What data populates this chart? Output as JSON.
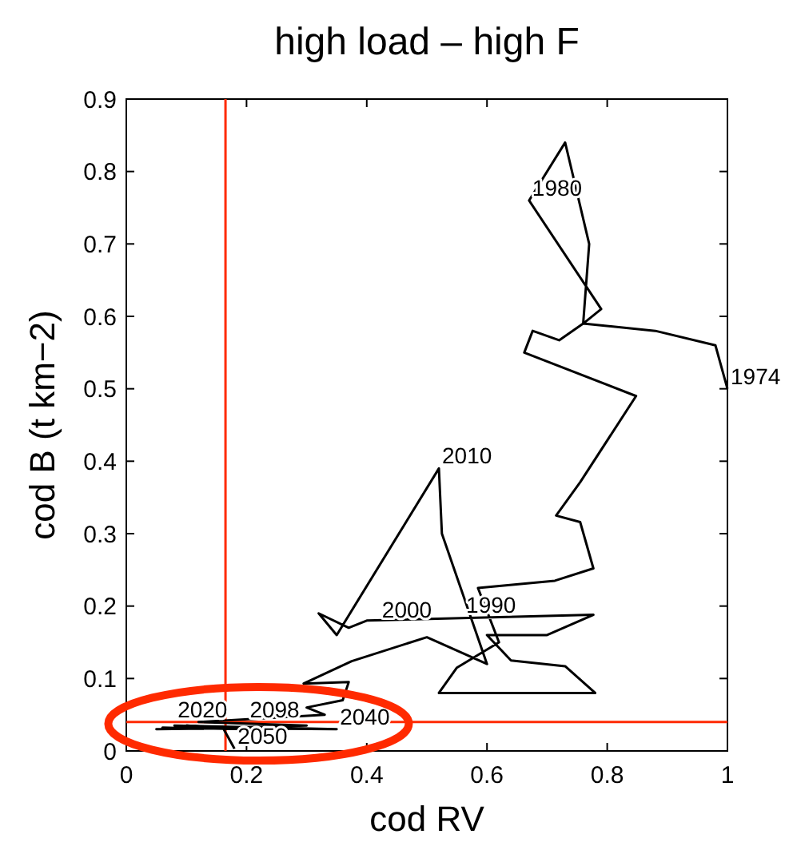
{
  "chart_data": {
    "type": "line",
    "title": "high load – high F",
    "xlabel": "cod RV",
    "ylabel": "cod B (t km−2)",
    "xlim": [
      0,
      1
    ],
    "ylim": [
      0,
      0.9
    ],
    "xticks": [
      0,
      0.2,
      0.4,
      0.6,
      0.8,
      1
    ],
    "yticks": [
      0,
      0.1,
      0.2,
      0.3,
      0.4,
      0.5,
      0.6,
      0.7,
      0.8,
      0.9
    ],
    "grid": false,
    "marker": "none",
    "line_style": "solid",
    "series": [
      {
        "color": "#000000",
        "x": [
          1.0,
          0.98,
          0.88,
          0.76,
          0.79,
          0.67,
          0.73,
          0.77,
          0.76,
          0.72,
          0.676,
          0.662,
          0.848,
          0.755,
          0.715,
          0.755,
          0.777,
          0.713,
          0.585,
          0.62,
          0.55,
          0.52,
          0.78,
          0.73,
          0.64,
          0.6,
          0.7,
          0.777,
          0.4,
          0.37,
          0.32,
          0.35,
          0.52,
          0.525,
          0.6,
          0.5,
          0.375,
          0.295,
          0.37,
          0.36,
          0.3,
          0.33,
          0.12,
          0.3,
          0.05,
          0.25,
          0.08,
          0.35,
          0.06,
          0.2,
          0.1,
          0.16,
          0.18
        ],
        "values": [
          0.5,
          0.56,
          0.58,
          0.59,
          0.61,
          0.76,
          0.84,
          0.7,
          0.59,
          0.567,
          0.58,
          0.55,
          0.49,
          0.371,
          0.325,
          0.316,
          0.252,
          0.235,
          0.225,
          0.15,
          0.115,
          0.08,
          0.08,
          0.117,
          0.125,
          0.16,
          0.16,
          0.188,
          0.18,
          0.17,
          0.19,
          0.16,
          0.39,
          0.3,
          0.12,
          0.157,
          0.124,
          0.093,
          0.095,
          0.07,
          0.06,
          0.05,
          0.04,
          0.035,
          0.03,
          0.032,
          0.035,
          0.03,
          0.032,
          0.03,
          0.035,
          0.033,
          0.003
        ]
      }
    ],
    "ref_lines": [
      {
        "axis": "x",
        "value": 0.165,
        "color": "#ff2a00"
      },
      {
        "axis": "y",
        "value": 0.04,
        "color": "#ff2a00"
      }
    ],
    "annotations": [
      {
        "text": "1974",
        "x": 1.0,
        "y": 0.5
      },
      {
        "text": "1980",
        "x": 0.67,
        "y": 0.76
      },
      {
        "text": "1990",
        "x": 0.56,
        "y": 0.184
      },
      {
        "text": "2000",
        "x": 0.42,
        "y": 0.178
      },
      {
        "text": "2010",
        "x": 0.52,
        "y": 0.39
      },
      {
        "text": "2020",
        "x": 0.08,
        "y": 0.04
      },
      {
        "text": "2098",
        "x": 0.2,
        "y": 0.04
      },
      {
        "text": "2040",
        "x": 0.35,
        "y": 0.03
      },
      {
        "text": "2050",
        "x": 0.18,
        "y": 0.003
      }
    ]
  }
}
